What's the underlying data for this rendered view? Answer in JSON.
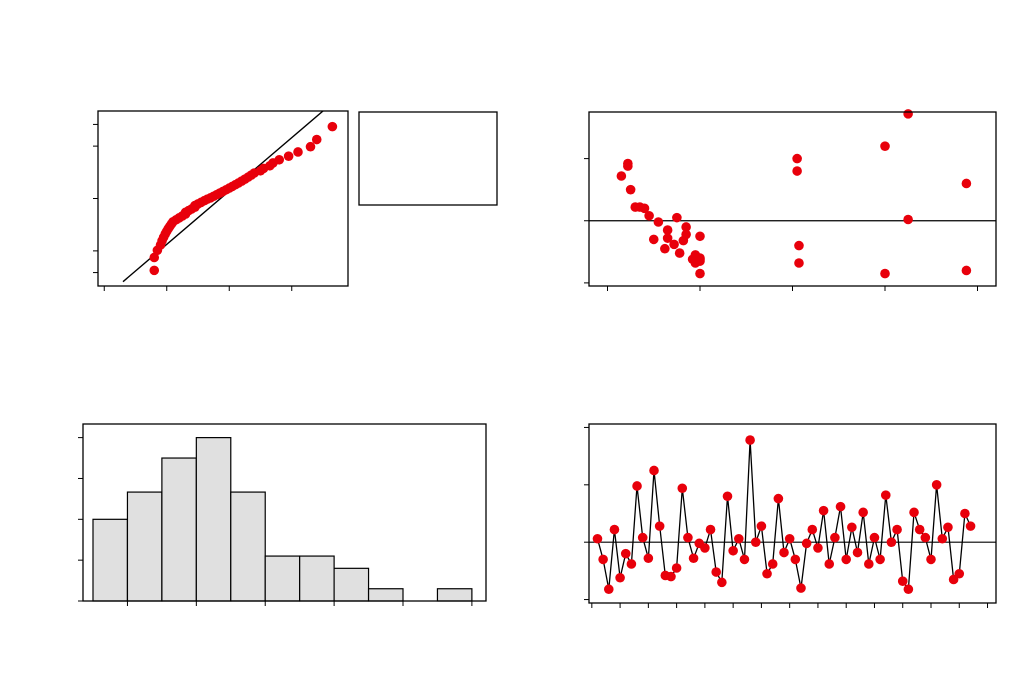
{
  "colors": {
    "point": "#e8000b",
    "line": "#000000",
    "bar_fill": "#e0e0e0",
    "frame": "#000000",
    "background": "#ffffff"
  },
  "chart_data": [
    {
      "panel": "top-left",
      "type": "scatter",
      "subtype": "normal-probability-plot",
      "title": "",
      "xlabel": "",
      "ylabel": "",
      "tick_labels_shown": false,
      "xlim": [
        -2.2,
        5.8
      ],
      "ylim": [
        0.003,
        0.997
      ],
      "y_scale": "normal-probability",
      "x_ticks": [
        -2,
        0,
        2,
        4,
        6
      ],
      "y_ticks": [
        0.01,
        0.05,
        0.5,
        0.95,
        0.99
      ],
      "fit_line": {
        "x": [
          -1.4,
          5.0
        ],
        "y": [
          0.0045,
          0.997
        ]
      },
      "points": {
        "x": [
          -0.4,
          -0.4,
          -0.3,
          -0.2,
          -0.15,
          -0.1,
          -0.05,
          0.0,
          0.05,
          0.1,
          0.15,
          0.2,
          0.3,
          0.4,
          0.5,
          0.6,
          0.6,
          0.7,
          0.8,
          0.9,
          0.9,
          1.0,
          1.1,
          1.2,
          1.3,
          1.4,
          1.5,
          1.6,
          1.7,
          1.8,
          1.9,
          2.0,
          2.1,
          2.2,
          2.3,
          2.4,
          2.5,
          2.6,
          2.7,
          2.8,
          3.0,
          3.1,
          3.3,
          3.4,
          3.6,
          3.9,
          4.2,
          4.6,
          4.8,
          5.3
        ],
        "y": [
          0.012,
          0.032,
          0.052,
          0.072,
          0.092,
          0.112,
          0.132,
          0.152,
          0.172,
          0.192,
          0.212,
          0.232,
          0.252,
          0.272,
          0.292,
          0.312,
          0.332,
          0.352,
          0.372,
          0.392,
          0.412,
          0.432,
          0.452,
          0.472,
          0.492,
          0.508,
          0.528,
          0.548,
          0.568,
          0.588,
          0.608,
          0.628,
          0.648,
          0.668,
          0.688,
          0.708,
          0.728,
          0.748,
          0.768,
          0.788,
          0.808,
          0.828,
          0.848,
          0.868,
          0.888,
          0.908,
          0.928,
          0.948,
          0.968,
          0.988
        ]
      },
      "legend_box": {
        "text": ""
      }
    },
    {
      "panel": "top-right",
      "type": "scatter",
      "subtype": "residuals-versus-fits",
      "title": "",
      "xlabel": "",
      "ylabel": "",
      "tick_labels_shown": false,
      "xlim": [
        -0.2,
        4.2
      ],
      "ylim": [
        -1.05,
        1.75
      ],
      "x_ticks": [
        0,
        1,
        2,
        3,
        4
      ],
      "y_ticks": [
        -1,
        0,
        1
      ],
      "reference_line_y": 0,
      "points": {
        "x": [
          0.15,
          0.22,
          0.22,
          0.25,
          0.3,
          0.35,
          0.4,
          0.45,
          0.55,
          0.5,
          0.62,
          0.65,
          0.65,
          0.75,
          0.72,
          0.78,
          0.82,
          0.85,
          0.85,
          0.95,
          1.0,
          0.92,
          0.95,
          1.0,
          1.0,
          1.0,
          1.0,
          2.05,
          2.05,
          2.07,
          2.07,
          3.0,
          3.0,
          3.25,
          3.25,
          3.88,
          3.88
        ],
        "y": [
          0.72,
          0.92,
          0.88,
          0.5,
          0.22,
          0.22,
          0.2,
          0.08,
          -0.02,
          -0.3,
          -0.45,
          -0.15,
          -0.28,
          0.05,
          -0.38,
          -0.52,
          -0.32,
          -0.1,
          -0.22,
          -0.55,
          -0.62,
          -0.62,
          -0.68,
          -0.25,
          -0.6,
          -0.65,
          -0.85,
          1.0,
          0.8,
          -0.4,
          -0.68,
          1.2,
          -0.85,
          1.72,
          0.02,
          0.6,
          -0.8
        ]
      }
    },
    {
      "panel": "bottom-left",
      "type": "bar",
      "subtype": "histogram",
      "title": "",
      "xlabel": "",
      "ylabel": "",
      "tick_labels_shown": false,
      "bin_start": -0.5,
      "bin_width": 0.5,
      "values": [
        6,
        8,
        10.5,
        12,
        8,
        3.3,
        3.3,
        2.4,
        0.9,
        0,
        0.9
      ],
      "xlim": [
        -0.5,
        5.35
      ],
      "ylim": [
        0,
        13
      ],
      "x_ticks": [
        0,
        1,
        2,
        3,
        4,
        5
      ],
      "y_ticks": [
        0,
        3,
        6,
        9,
        12
      ]
    },
    {
      "panel": "bottom-right",
      "type": "line",
      "subtype": "residuals-versus-order",
      "title": "",
      "xlabel": "",
      "ylabel": "",
      "tick_labels_shown": false,
      "markers": true,
      "reference_line_y": 0,
      "xlim": [
        -0.5,
        71.5
      ],
      "ylim": [
        -1.06,
        2.06
      ],
      "x_ticks": [
        0,
        5,
        10,
        15,
        20,
        25,
        30,
        35,
        40,
        45,
        50,
        55,
        60,
        65,
        70
      ],
      "y_ticks": [
        -1,
        0,
        1,
        2
      ],
      "values": [
        0.06,
        -0.3,
        -0.82,
        0.22,
        -0.62,
        -0.2,
        -0.38,
        0.98,
        0.08,
        -0.28,
        1.25,
        0.28,
        -0.58,
        -0.6,
        -0.45,
        0.94,
        0.08,
        -0.28,
        -0.02,
        -0.1,
        0.22,
        -0.52,
        -0.7,
        0.8,
        -0.15,
        0.06,
        -0.3,
        1.78,
        0.0,
        0.28,
        -0.55,
        -0.38,
        0.76,
        -0.18,
        0.06,
        -0.3,
        -0.8,
        -0.02,
        0.22,
        -0.1,
        0.55,
        -0.38,
        0.08,
        0.62,
        -0.3,
        0.26,
        -0.18,
        0.52,
        -0.38,
        0.08,
        -0.3,
        0.82,
        0.0,
        0.22,
        -0.68,
        -0.82,
        0.52,
        0.22,
        0.08,
        -0.3,
        1.0,
        0.06,
        0.26,
        -0.65,
        -0.55,
        0.5,
        0.28
      ]
    }
  ]
}
